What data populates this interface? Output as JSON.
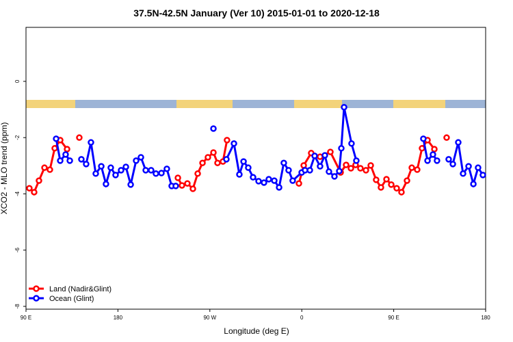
{
  "chart_data": {
    "type": "line",
    "title": "37.5N-42.5N January (Ver 10)   2015-01-01 to 2020-12-18",
    "xlabel": "Longitude (deg E)",
    "ylabel": "XCO2 - MLO trend (ppm)",
    "xlim": [
      90,
      540
    ],
    "ylim": [
      -8.1,
      1.92
    ],
    "xticks": [
      {
        "value": 90,
        "label": "90 E"
      },
      180,
      {
        "value": 270,
        "label": "90 W"
      },
      {
        "value": 360,
        "label": "0"
      },
      {
        "value": 450,
        "label": "90 E"
      },
      {
        "value": 540,
        "label": "180"
      }
    ],
    "yticks": [
      0,
      -2,
      -4,
      -6,
      -8
    ],
    "legend": "bottom-left",
    "series": [
      {
        "name": "Land (Nadir&Glint)",
        "color": "#ff0000",
        "x": [
          93.3,
          98.0,
          102.7,
          108.1,
          113.4,
          118.1,
          123.5,
          130.2,
          null,
          142.2,
          null,
          238.7,
          242.7,
          248.0,
          253.4,
          258.1,
          262.8,
          268.1,
          273.5,
          277.5,
          282.8,
          286.8,
          null,
          357.2,
          361.9,
          369.2,
          377.9,
          388.0,
          398.0,
          403.4,
          408.1,
          412.7,
          417.4,
          422.8,
          427.5,
          432.8,
          437.5,
          442.9,
          447.6,
          452.9,
          457.6,
          463.0,
          467.7,
          473.0,
          477.7,
          483.1,
          489.8,
          null,
          501.8
        ],
        "values": [
          -3.8,
          -3.94,
          -3.53,
          -3.07,
          -3.14,
          -2.38,
          -2.09,
          -2.41,
          null,
          -2.0,
          null,
          -3.43,
          -3.7,
          -3.63,
          -3.82,
          -3.28,
          -2.9,
          -2.7,
          -2.53,
          -2.9,
          -2.85,
          -2.09,
          null,
          -3.63,
          -2.99,
          -2.55,
          -2.68,
          -2.51,
          -3.24,
          -2.97,
          -3.09,
          -2.97,
          -3.09,
          -3.16,
          -2.99,
          -3.5,
          -3.77,
          -3.48,
          -3.67,
          -3.8,
          -3.94,
          -3.53,
          -3.07,
          -3.14,
          -2.38,
          -2.09,
          -2.41,
          null,
          -2.0
        ]
      },
      {
        "name": "Ocean (Glint)",
        "color": "#0000ff",
        "x": [
          119.5,
          123.5,
          128.8,
          132.9,
          null,
          144.2,
          148.9,
          153.6,
          158.3,
          163.7,
          168.3,
          173.0,
          177.7,
          183.1,
          187.8,
          192.5,
          197.8,
          202.5,
          207.2,
          212.5,
          217.2,
          222.6,
          227.9,
          232.6,
          236.6,
          null,
          273.5,
          null,
          286.2,
          293.6,
          298.9,
          303.0,
          307.6,
          312.3,
          317.7,
          323.0,
          327.7,
          333.1,
          337.8,
          342.4,
          347.1,
          351.1,
          359.9,
          363.2,
          367.9,
          372.6,
          377.9,
          382.6,
          386.6,
          392.0,
          396.7,
          398.7,
          401.4,
          408.7,
          413.4,
          null,
          479.0,
          483.1,
          488.4,
          492.4,
          null,
          503.8,
          507.9,
          513.2,
          517.9,
          523.3,
          528.0,
          532.6,
          537.3
        ],
        "values": [
          -2.04,
          -2.82,
          -2.6,
          -2.82,
          null,
          -2.77,
          -2.94,
          -2.17,
          -3.28,
          -3.02,
          -3.65,
          -3.07,
          -3.33,
          -3.16,
          -3.04,
          -3.67,
          -2.82,
          -2.7,
          -3.16,
          -3.16,
          -3.28,
          -3.26,
          -3.11,
          -3.72,
          -3.72,
          null,
          -1.68,
          null,
          -2.77,
          -2.21,
          -3.31,
          -2.85,
          -3.07,
          -3.41,
          -3.55,
          -3.6,
          -3.48,
          -3.53,
          -3.77,
          -2.9,
          -3.16,
          -3.53,
          -3.24,
          -3.16,
          -3.16,
          -2.65,
          -3.02,
          -2.63,
          -3.21,
          -3.38,
          -3.19,
          -2.38,
          -0.92,
          -2.21,
          -2.82,
          null,
          -2.04,
          -2.82,
          -2.6,
          -2.82,
          null,
          -2.77,
          -2.94,
          -2.17,
          -3.28,
          -3.02,
          -3.65,
          -3.07,
          -3.33
        ]
      }
    ]
  }
}
